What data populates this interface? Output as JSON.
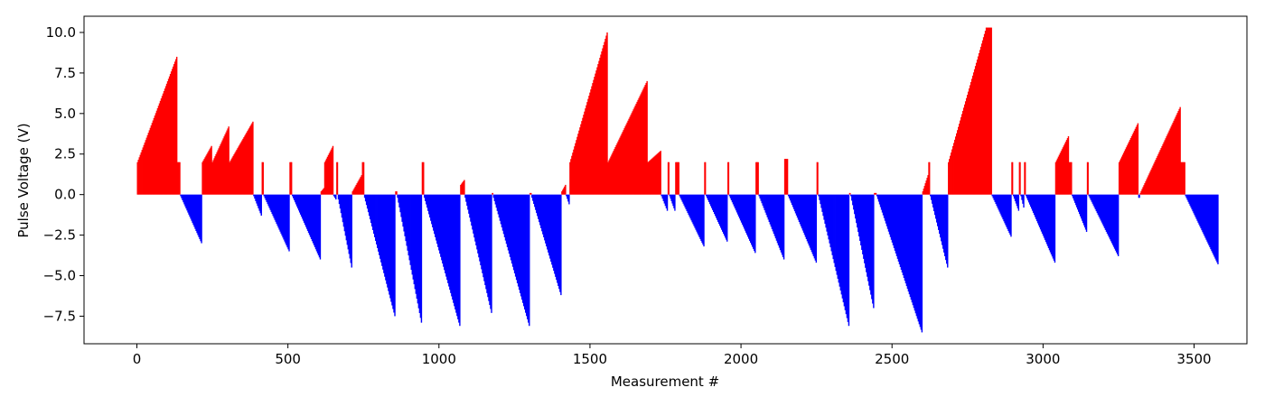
{
  "chart_data": {
    "type": "bar",
    "xlabel": "Measurement #",
    "ylabel": "Pulse Voltage (V)",
    "xlim": [
      -175,
      3675
    ],
    "ylim": [
      -9.2,
      11.0
    ],
    "xticks": [
      0,
      500,
      1000,
      1500,
      2000,
      2500,
      3000,
      3500
    ],
    "yticks": [
      -7.5,
      -5.0,
      -2.5,
      0.0,
      2.5,
      5.0,
      7.5,
      10.0
    ],
    "xtick_labels": [
      "0",
      "500",
      "1000",
      "1500",
      "2000",
      "2500",
      "3000",
      "3500"
    ],
    "ytick_labels": [
      "−7.5",
      "−5.0",
      "−2.5",
      "0.0",
      "2.5",
      "5.0",
      "7.5",
      "10.0"
    ],
    "grid": false,
    "positive_color": "#ff0000",
    "negative_color": "#0000ff",
    "segments": [
      {
        "x_start": 0,
        "x_end": 133,
        "v_start": 2.0,
        "v_end": 8.5
      },
      {
        "x_start": 133,
        "x_end": 143,
        "v_start": 2.0,
        "v_end": 2.0
      },
      {
        "x_start": 143,
        "x_end": 215,
        "v_start": -0.1,
        "v_end": -3.0
      },
      {
        "x_start": 215,
        "x_end": 248,
        "v_start": 2.0,
        "v_end": 3.0
      },
      {
        "x_start": 248,
        "x_end": 305,
        "v_start": 2.0,
        "v_end": 4.2
      },
      {
        "x_start": 305,
        "x_end": 385,
        "v_start": 2.0,
        "v_end": 4.5
      },
      {
        "x_start": 385,
        "x_end": 413,
        "v_start": -0.1,
        "v_end": -1.3
      },
      {
        "x_start": 413,
        "x_end": 419,
        "v_start": 2.0,
        "v_end": 2.0
      },
      {
        "x_start": 419,
        "x_end": 505,
        "v_start": -0.1,
        "v_end": -3.5
      },
      {
        "x_start": 505,
        "x_end": 513,
        "v_start": 2.0,
        "v_end": 2.0
      },
      {
        "x_start": 513,
        "x_end": 608,
        "v_start": -0.1,
        "v_end": -4.0
      },
      {
        "x_start": 608,
        "x_end": 620,
        "v_start": 0.2,
        "v_end": 0.4
      },
      {
        "x_start": 620,
        "x_end": 650,
        "v_start": 2.0,
        "v_end": 3.0
      },
      {
        "x_start": 650,
        "x_end": 660,
        "v_start": -0.1,
        "v_end": -0.3
      },
      {
        "x_start": 660,
        "x_end": 665,
        "v_start": 2.0,
        "v_end": 2.0
      },
      {
        "x_start": 665,
        "x_end": 712,
        "v_start": -0.3,
        "v_end": -4.5
      },
      {
        "x_start": 712,
        "x_end": 745,
        "v_start": 0.2,
        "v_end": 1.2
      },
      {
        "x_start": 745,
        "x_end": 752,
        "v_start": 2.0,
        "v_end": 2.0
      },
      {
        "x_start": 752,
        "x_end": 855,
        "v_start": -0.2,
        "v_end": -7.5
      },
      {
        "x_start": 855,
        "x_end": 861,
        "v_start": 0.2,
        "v_end": 0.2
      },
      {
        "x_start": 861,
        "x_end": 943,
        "v_start": -0.2,
        "v_end": -7.9
      },
      {
        "x_start": 943,
        "x_end": 950,
        "v_start": 2.0,
        "v_end": 2.0
      },
      {
        "x_start": 950,
        "x_end": 1070,
        "v_start": -0.2,
        "v_end": -8.1
      },
      {
        "x_start": 1070,
        "x_end": 1085,
        "v_start": 0.6,
        "v_end": 0.9
      },
      {
        "x_start": 1085,
        "x_end": 1175,
        "v_start": -0.2,
        "v_end": -7.3
      },
      {
        "x_start": 1175,
        "x_end": 1179,
        "v_start": 0.1,
        "v_end": 0.1
      },
      {
        "x_start": 1179,
        "x_end": 1300,
        "v_start": -0.2,
        "v_end": -8.1
      },
      {
        "x_start": 1300,
        "x_end": 1306,
        "v_start": 0.1,
        "v_end": 0.1
      },
      {
        "x_start": 1306,
        "x_end": 1405,
        "v_start": -0.2,
        "v_end": -6.2
      },
      {
        "x_start": 1405,
        "x_end": 1420,
        "v_start": 0.2,
        "v_end": 0.6
      },
      {
        "x_start": 1420,
        "x_end": 1432,
        "v_start": -0.1,
        "v_end": -0.6
      },
      {
        "x_start": 1432,
        "x_end": 1558,
        "v_start": 2.0,
        "v_end": 10.0
      },
      {
        "x_start": 1558,
        "x_end": 1690,
        "v_start": 2.0,
        "v_end": 7.0
      },
      {
        "x_start": 1690,
        "x_end": 1735,
        "v_start": 2.0,
        "v_end": 2.7
      },
      {
        "x_start": 1735,
        "x_end": 1757,
        "v_start": -0.1,
        "v_end": -1.0
      },
      {
        "x_start": 1757,
        "x_end": 1762,
        "v_start": 2.0,
        "v_end": 2.0
      },
      {
        "x_start": 1762,
        "x_end": 1782,
        "v_start": -0.1,
        "v_end": -1.0
      },
      {
        "x_start": 1782,
        "x_end": 1795,
        "v_start": 2.0,
        "v_end": 2.0
      },
      {
        "x_start": 1795,
        "x_end": 1878,
        "v_start": -0.1,
        "v_end": -3.2
      },
      {
        "x_start": 1878,
        "x_end": 1883,
        "v_start": 2.0,
        "v_end": 2.0
      },
      {
        "x_start": 1883,
        "x_end": 1955,
        "v_start": -0.1,
        "v_end": -2.9
      },
      {
        "x_start": 1955,
        "x_end": 1960,
        "v_start": 2.0,
        "v_end": 2.0
      },
      {
        "x_start": 1960,
        "x_end": 2048,
        "v_start": -0.1,
        "v_end": -3.6
      },
      {
        "x_start": 2048,
        "x_end": 2058,
        "v_start": 2.0,
        "v_end": 2.0
      },
      {
        "x_start": 2058,
        "x_end": 2143,
        "v_start": -0.1,
        "v_end": -4.0
      },
      {
        "x_start": 2143,
        "x_end": 2155,
        "v_start": 2.2,
        "v_end": 2.2
      },
      {
        "x_start": 2155,
        "x_end": 2250,
        "v_start": -0.1,
        "v_end": -4.2
      },
      {
        "x_start": 2250,
        "x_end": 2255,
        "v_start": 2.0,
        "v_end": 2.0
      },
      {
        "x_start": 2255,
        "x_end": 2358,
        "v_start": -0.1,
        "v_end": -8.1
      },
      {
        "x_start": 2358,
        "x_end": 2362,
        "v_start": 0.1,
        "v_end": 0.1
      },
      {
        "x_start": 2362,
        "x_end": 2440,
        "v_start": -0.1,
        "v_end": -7.0
      },
      {
        "x_start": 2440,
        "x_end": 2448,
        "v_start": 0.1,
        "v_end": 0.1
      },
      {
        "x_start": 2448,
        "x_end": 2600,
        "v_start": -0.1,
        "v_end": -8.5
      },
      {
        "x_start": 2600,
        "x_end": 2620,
        "v_start": 0.2,
        "v_end": 1.2
      },
      {
        "x_start": 2620,
        "x_end": 2625,
        "v_start": 2.0,
        "v_end": 2.0
      },
      {
        "x_start": 2625,
        "x_end": 2685,
        "v_start": -0.1,
        "v_end": -4.5
      },
      {
        "x_start": 2685,
        "x_end": 2813,
        "v_start": 2.0,
        "v_end": 10.3
      },
      {
        "x_start": 2813,
        "x_end": 2830,
        "v_start": 10.3,
        "v_end": 10.3
      },
      {
        "x_start": 2830,
        "x_end": 2895,
        "v_start": -0.1,
        "v_end": -2.6
      },
      {
        "x_start": 2895,
        "x_end": 2900,
        "v_start": 2.0,
        "v_end": 2.0
      },
      {
        "x_start": 2900,
        "x_end": 2920,
        "v_start": -0.1,
        "v_end": -1.0
      },
      {
        "x_start": 2920,
        "x_end": 2925,
        "v_start": 2.0,
        "v_end": 2.0
      },
      {
        "x_start": 2925,
        "x_end": 2937,
        "v_start": -0.1,
        "v_end": -0.8
      },
      {
        "x_start": 2937,
        "x_end": 2942,
        "v_start": 2.0,
        "v_end": 2.0
      },
      {
        "x_start": 2942,
        "x_end": 3040,
        "v_start": -0.1,
        "v_end": -4.2
      },
      {
        "x_start": 3040,
        "x_end": 3085,
        "v_start": 2.0,
        "v_end": 3.6
      },
      {
        "x_start": 3085,
        "x_end": 3095,
        "v_start": 2.0,
        "v_end": 2.0
      },
      {
        "x_start": 3095,
        "x_end": 3145,
        "v_start": -0.1,
        "v_end": -2.3
      },
      {
        "x_start": 3145,
        "x_end": 3150,
        "v_start": 2.0,
        "v_end": 2.0
      },
      {
        "x_start": 3150,
        "x_end": 3250,
        "v_start": -0.1,
        "v_end": -3.8
      },
      {
        "x_start": 3250,
        "x_end": 3315,
        "v_start": 2.0,
        "v_end": 4.4
      },
      {
        "x_start": 3315,
        "x_end": 3320,
        "v_start": -0.2,
        "v_end": -0.2
      },
      {
        "x_start": 3320,
        "x_end": 3455,
        "v_start": 0.1,
        "v_end": 5.4
      },
      {
        "x_start": 3455,
        "x_end": 3470,
        "v_start": 2.0,
        "v_end": 2.0
      },
      {
        "x_start": 3470,
        "x_end": 3580,
        "v_start": -0.1,
        "v_end": -4.3
      }
    ]
  }
}
